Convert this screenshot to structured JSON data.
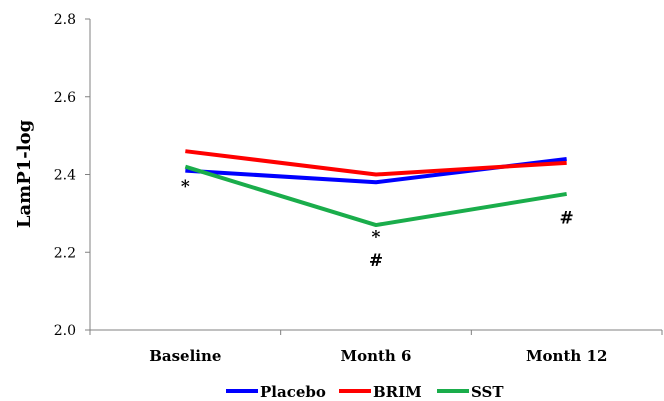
{
  "chart_data": {
    "type": "line",
    "title": "",
    "xlabel": "",
    "ylabel": "LamP1-log",
    "categories": [
      "Baseline",
      "Month 6",
      "Month 12"
    ],
    "ylim": [
      2.0,
      2.8
    ],
    "yticks": [
      "2.0",
      "2.2",
      "2.4",
      "2.6",
      "2.8"
    ],
    "grid": false,
    "legend_position": "bottom",
    "series": [
      {
        "name": "Placebo",
        "color": "#0000ff",
        "values": [
          2.41,
          2.38,
          2.44
        ]
      },
      {
        "name": "BRIM",
        "color": "#ff0000",
        "values": [
          2.46,
          2.4,
          2.43
        ]
      },
      {
        "name": "SST",
        "color": "#1aad4b",
        "values": [
          2.42,
          2.27,
          2.35
        ]
      }
    ],
    "annotations": [
      {
        "text": "*",
        "category": "Baseline",
        "y": 2.37
      },
      {
        "text": "*",
        "category": "Month 6",
        "y": 2.24
      },
      {
        "text": "#",
        "category": "Month 6",
        "y": 2.18
      },
      {
        "text": "#",
        "category": "Month 12",
        "y": 2.29
      }
    ]
  }
}
